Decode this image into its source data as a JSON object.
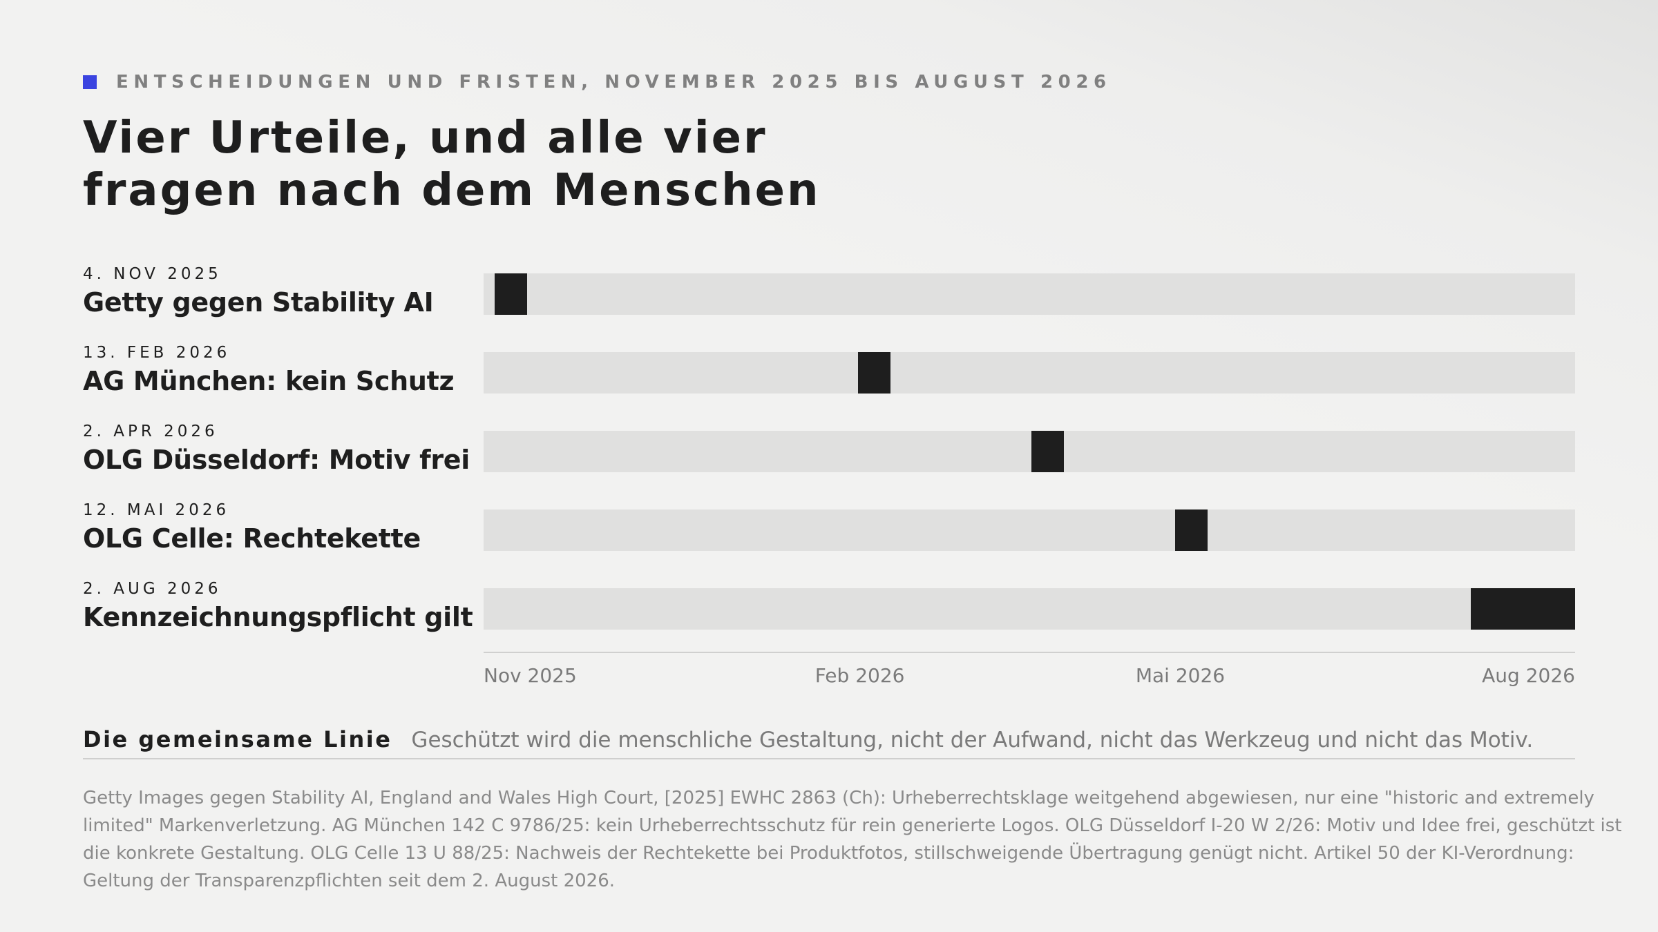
{
  "header": {
    "eyebrow": "ENTSCHEIDUNGEN UND FRISTEN, NOVEMBER 2025 BIS AUGUST 2026",
    "title_lines": [
      "Vier Urteile, und alle vier",
      "fragen nach dem Menschen"
    ]
  },
  "colors": {
    "accent": "#3b44e0",
    "marker": "#1e1e1e",
    "track": "#e0e0df",
    "muted_text": "#7a7a7a"
  },
  "chart_data": {
    "type": "bar",
    "orientation": "horizontal-timeline",
    "x_range": [
      "2025-11-01",
      "2026-08-31"
    ],
    "x_ticks": [
      "Nov 2025",
      "Feb 2026",
      "Mai 2026",
      "Aug 2026"
    ],
    "x_tick_dates": [
      "2025-11-01",
      "2026-02-01",
      "2026-05-01",
      "2026-08-01"
    ],
    "events": [
      {
        "date": "4. NOV 2025",
        "name": "Getty gegen Stability AI",
        "start": "2025-11-04",
        "end": "2025-11-13"
      },
      {
        "date": "13. FEB 2026",
        "name": "AG München: kein Schutz",
        "start": "2026-02-13",
        "end": "2026-02-22"
      },
      {
        "date": "2. APR 2026",
        "name": "OLG Düsseldorf: Motiv frei",
        "start": "2026-04-02",
        "end": "2026-04-11"
      },
      {
        "date": "12. MAI 2026",
        "name": "OLG Celle: Rechtekette",
        "start": "2026-05-12",
        "end": "2026-05-21"
      },
      {
        "date": "2. AUG 2026",
        "name": "Kennzeichnungspflicht gilt",
        "start": "2026-08-02",
        "end": "2026-08-31"
      }
    ]
  },
  "summary": {
    "label": "Die gemeinsame Linie",
    "text": "Geschützt wird die menschliche Gestaltung, nicht der Aufwand, nicht das Werkzeug und nicht das Motiv."
  },
  "source_lines": [
    "Getty Images gegen Stability AI, England and Wales High Court, [2025] EWHC 2863 (Ch): Urheberrechtsklage weitgehend abgewiesen, nur eine \"historic and extremely",
    "limited\" Markenverletzung. AG München 142 C 9786/25: kein Urheberrechtsschutz für rein generierte Logos. OLG Düsseldorf I-20 W 2/26: Motiv und Idee frei, geschützt ist",
    "die konkrete Gestaltung. OLG Celle 13 U 88/25: Nachweis der Rechtekette bei Produktfotos, stillschweigende Übertragung genügt nicht. Artikel 50 der KI-Verordnung:",
    "Geltung der Transparenzpflichten seit dem 2. August 2026."
  ]
}
